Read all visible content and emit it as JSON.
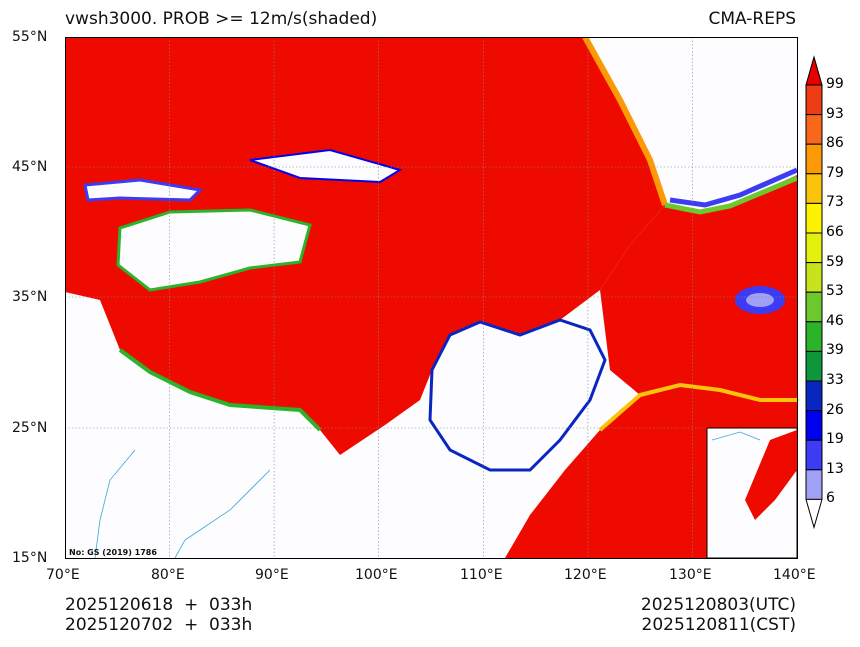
{
  "title_left": "vwsh3000. PROB >= 12m/s(shaded)",
  "title_right": "CMA-REPS",
  "lat_labels": [
    "55°N",
    "45°N",
    "35°N",
    "25°N",
    "15°N"
  ],
  "lon_labels": [
    "70°E",
    "80°E",
    "90°E",
    "100°E",
    "110°E",
    "120°E",
    "130°E",
    "140°E"
  ],
  "map_note": "No: GS (2019) 1786",
  "init_lines": [
    "2025120618  +  033h",
    "2025120702  +  033h"
  ],
  "valid_lines": [
    "2025120803(UTC)",
    "2025120811(CST)"
  ],
  "colorbar": {
    "labels": [
      "99",
      "93",
      "86",
      "79",
      "73",
      "66",
      "59",
      "53",
      "46",
      "39",
      "33",
      "26",
      "19",
      "13",
      "6"
    ],
    "colors": [
      "#ee3c14",
      "#f8681a",
      "#fb9906",
      "#fcc30b",
      "#fff200",
      "#e4f10c",
      "#c6e31e",
      "#6cc82c",
      "#2bb329",
      "#10963a",
      "#0a26c0",
      "#0000f0",
      "#3c3cf5",
      "#a0a0f5"
    ],
    "over_color": "#e60000",
    "under_color": "#ffffff"
  }
}
